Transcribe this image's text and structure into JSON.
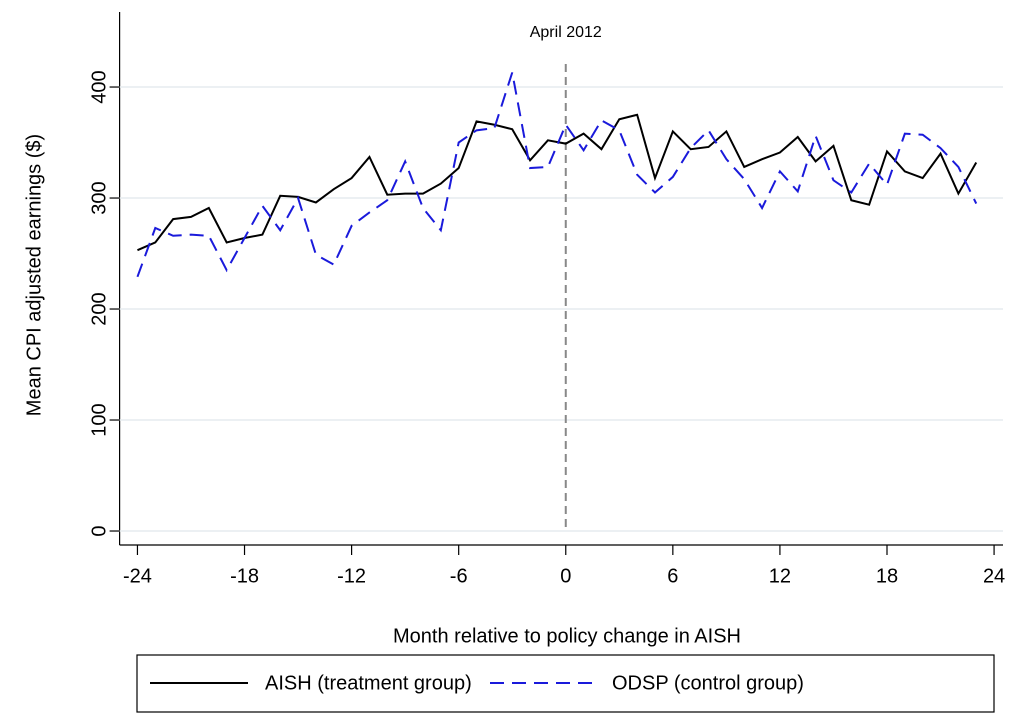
{
  "chart_data": {
    "type": "line",
    "x_label": "Month relative to policy change in AISH",
    "y_label": "Mean CPI adjusted earnings ($)",
    "x": [
      -24,
      -23,
      -22,
      -21,
      -20,
      -19,
      -18,
      -17,
      -16,
      -15,
      -14,
      -13,
      -12,
      -11,
      -10,
      -9,
      -8,
      -7,
      -6,
      -5,
      -4,
      -3,
      -2,
      -1,
      0,
      1,
      2,
      3,
      4,
      5,
      6,
      7,
      8,
      9,
      10,
      11,
      12,
      13,
      14,
      15,
      16,
      17,
      18,
      19,
      20,
      21,
      22,
      23
    ],
    "series": [
      {
        "name": "AISH (treatment group)",
        "color": "#000000",
        "dash": "solid",
        "values": [
          253,
          260,
          281,
          283,
          291,
          260,
          264,
          267,
          302,
          301,
          296,
          308,
          318,
          337,
          303,
          304,
          304,
          313,
          327,
          369,
          366,
          362,
          334,
          352,
          349,
          358,
          344,
          371,
          375,
          318,
          360,
          344,
          346,
          360,
          328,
          335,
          341,
          355,
          333,
          347,
          298,
          294,
          342,
          324,
          318,
          340,
          304,
          332
        ]
      },
      {
        "name": "ODSP (control group)",
        "color": "#1a1adb",
        "dash": "dashed",
        "values": [
          229,
          273,
          266,
          267,
          266,
          235,
          264,
          293,
          271,
          300,
          249,
          240,
          275,
          287,
          298,
          333,
          291,
          271,
          350,
          361,
          363,
          413,
          327,
          328,
          366,
          343,
          370,
          361,
          321,
          305,
          319,
          345,
          361,
          335,
          317,
          291,
          324,
          306,
          356,
          316,
          305,
          331,
          312,
          358,
          357,
          345,
          328,
          295
        ]
      }
    ],
    "annotation": {
      "text": "April 2012",
      "x": 0
    },
    "xlim": [
      -25,
      24.5
    ],
    "ylim": [
      -12.6,
      467.6
    ],
    "xticks": [
      -24,
      -18,
      -12,
      -6,
      0,
      6,
      12,
      18,
      24
    ],
    "yticks": [
      0,
      100,
      200,
      300,
      400
    ],
    "grid": true,
    "legend": "bottom"
  }
}
